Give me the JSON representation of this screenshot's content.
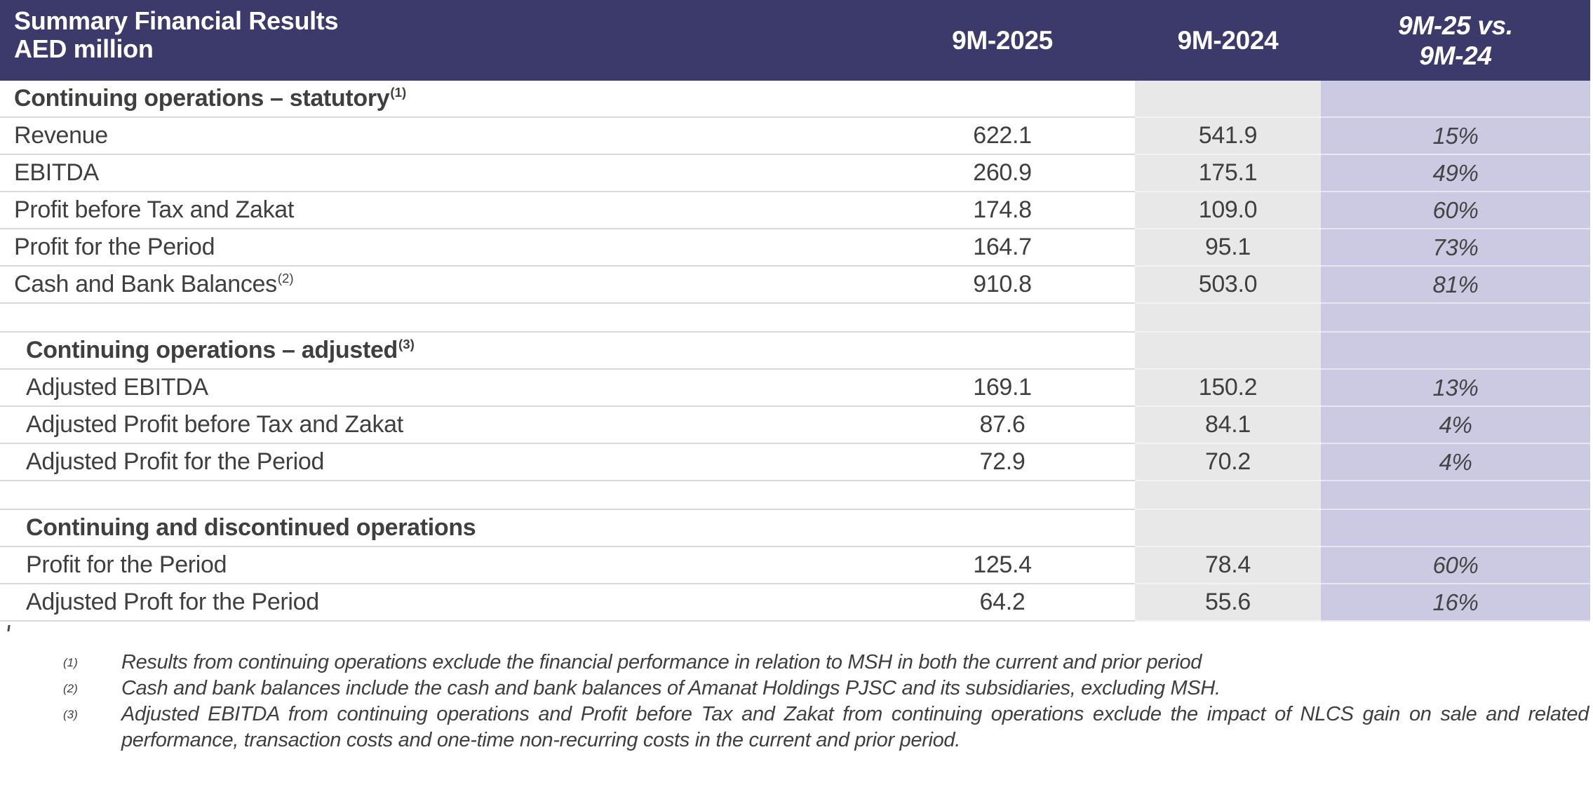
{
  "title": {
    "line1": "Summary Financial Results",
    "line2": "AED million"
  },
  "columns": {
    "c2025": "9M-2025",
    "c2024": "9M-2024",
    "change_line1": "9M-25 vs.",
    "change_line2": "9M-24"
  },
  "rows": [
    {
      "type": "section",
      "label": "Continuing operations – statutory",
      "sup": "(1)"
    },
    {
      "type": "data",
      "label": "Revenue",
      "v2025": "622.1",
      "v2024": "541.9",
      "chg": "15%"
    },
    {
      "type": "data",
      "label": "EBITDA",
      "v2025": "260.9",
      "v2024": "175.1",
      "chg": "49%"
    },
    {
      "type": "data",
      "label": "Profit before Tax and Zakat",
      "v2025": "174.8",
      "v2024": "109.0",
      "chg": "60%"
    },
    {
      "type": "data",
      "label": "Profit for the Period",
      "v2025": "164.7",
      "v2024": "95.1",
      "chg": "73%"
    },
    {
      "type": "data",
      "label": "Cash and Bank Balances",
      "sup": "(2)",
      "v2025": "910.8",
      "v2024": "503.0",
      "chg": "81%"
    },
    {
      "type": "blank"
    },
    {
      "type": "section",
      "label": "Continuing operations – adjusted",
      "sup": "(3)"
    },
    {
      "type": "data",
      "label": "Adjusted EBITDA",
      "v2025": "169.1",
      "v2024": "150.2",
      "chg": "13%"
    },
    {
      "type": "data",
      "label": "Adjusted Profit before Tax and Zakat",
      "v2025": "87.6",
      "v2024": "84.1",
      "chg": "4%"
    },
    {
      "type": "data",
      "label": "Adjusted Profit for the Period",
      "v2025": "72.9",
      "v2024": "70.2",
      "chg": "4%"
    },
    {
      "type": "blank"
    },
    {
      "type": "section",
      "label": "Continuing and discontinued operations"
    },
    {
      "type": "data",
      "label": "Profit for the Period",
      "v2025": "125.4",
      "v2024": "78.4",
      "chg": "60%"
    },
    {
      "type": "data",
      "label": "Adjusted Proft for the Period",
      "v2025": "64.2",
      "v2024": "55.6",
      "chg": "16%"
    }
  ],
  "footnotes": [
    {
      "marker": "(1)",
      "text": "Results from continuing operations exclude the financial performance in relation to MSH in both the current and prior period"
    },
    {
      "marker": "(2)",
      "text": "Cash and bank balances include the cash and bank balances of Amanat Holdings PJSC and its subsidiaries, excluding MSH."
    },
    {
      "marker": "(3)",
      "text": "Adjusted EBITDA from continuing operations and Profit before Tax and Zakat from continuing operations exclude the impact of NLCS gain on sale and related performance, transaction costs and one-time non-recurring costs in the current and prior period."
    }
  ],
  "colors": {
    "header_bg": "#3B3A6A",
    "col_2024_bg": "#E8E8E8",
    "col_change_bg": "#CBCAE2",
    "row_divider": "#D9D9D9",
    "body_text": "#3F3F3F",
    "header_text": "#FFFFFF"
  }
}
